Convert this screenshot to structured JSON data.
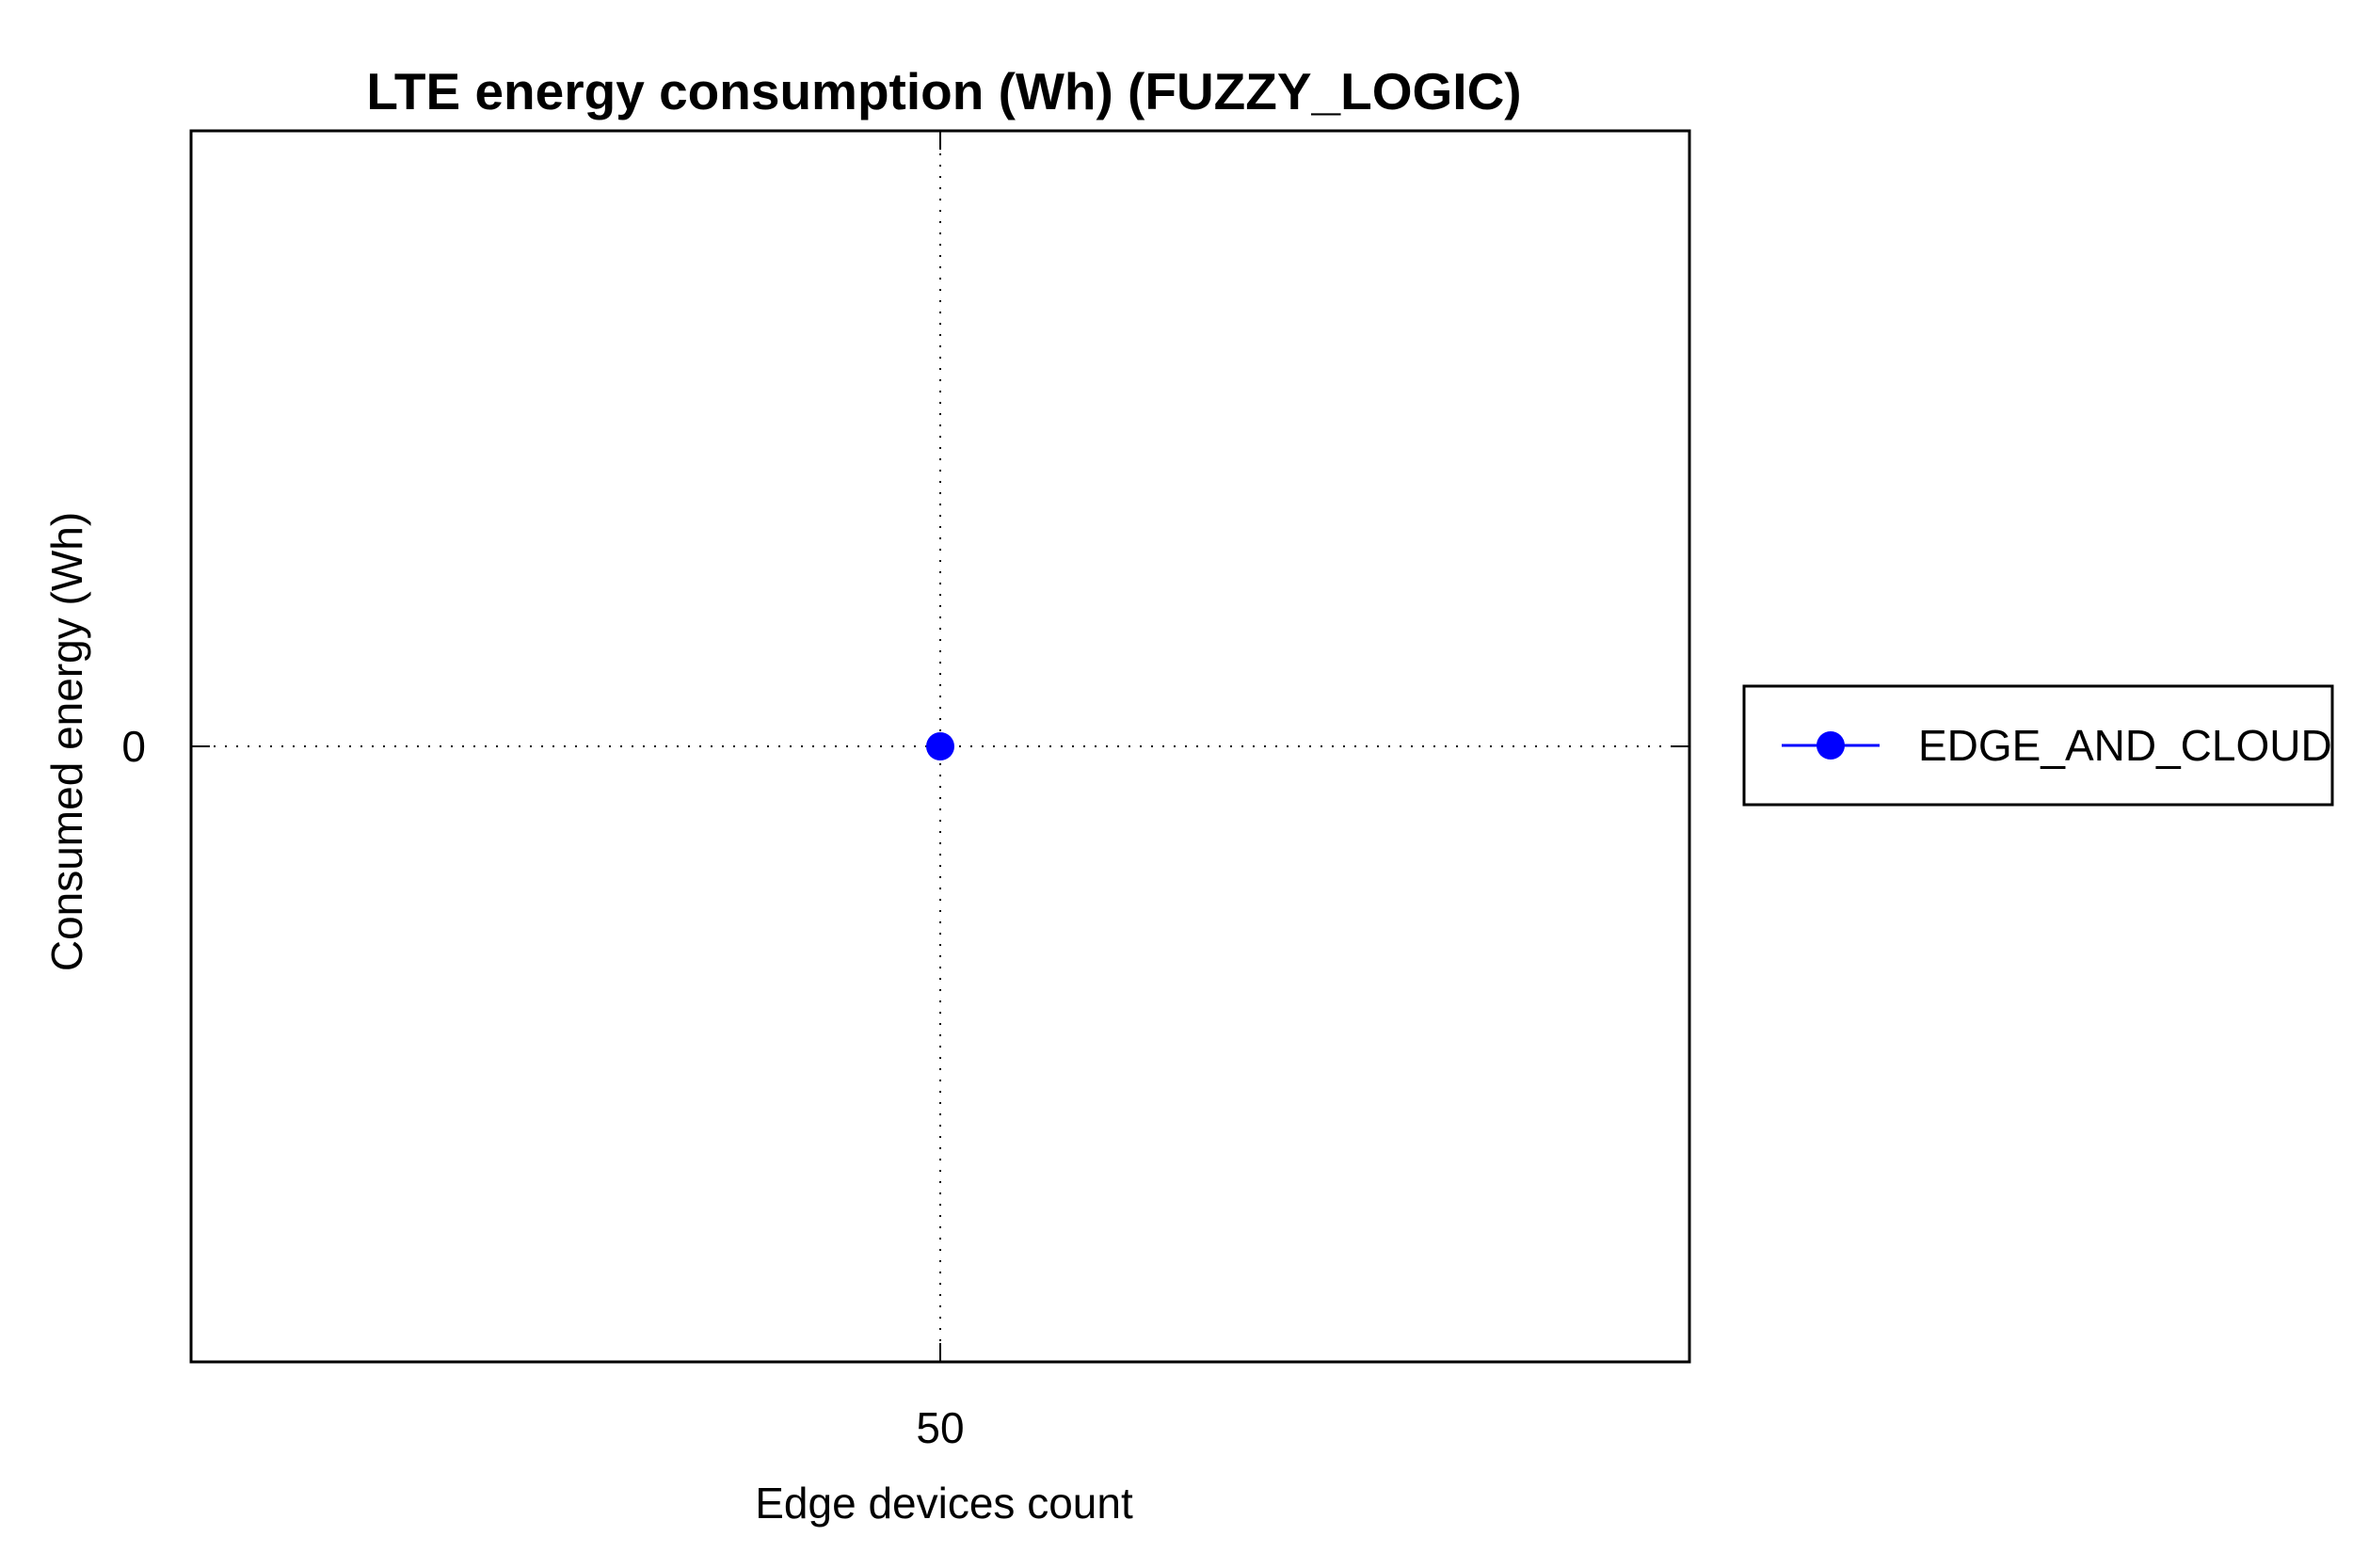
{
  "chart_data": {
    "type": "line",
    "title": "LTE energy consumption (Wh) (FUZZY_LOGIC)",
    "xlabel": "Edge devices count",
    "ylabel": "Consumed energy (Wh)",
    "x_ticks": [
      "50"
    ],
    "y_ticks": [
      "0"
    ],
    "x": [
      50
    ],
    "xlim": [
      49,
      51
    ],
    "ylim": [
      -1,
      1
    ],
    "grid": true,
    "legend_position": "right",
    "series": [
      {
        "name": "EDGE_AND_CLOUD",
        "values": [
          0
        ],
        "color": "#0000ff",
        "marker": "circle"
      }
    ]
  }
}
